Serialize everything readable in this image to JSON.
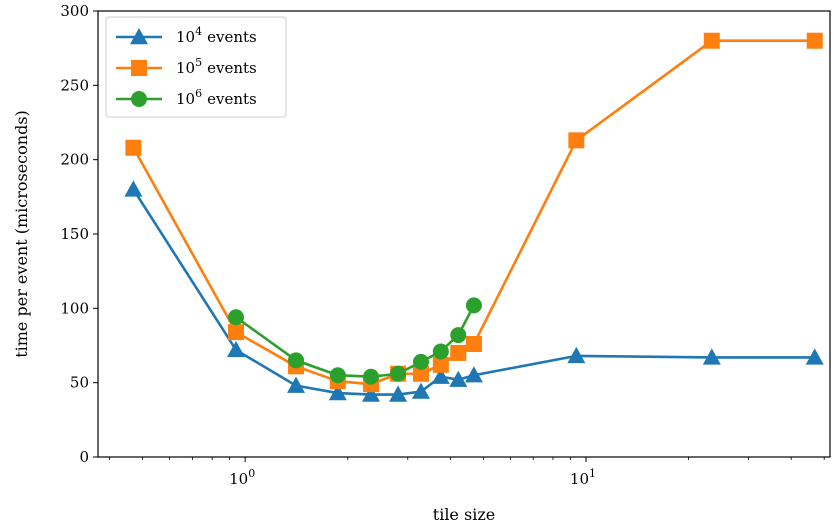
{
  "chart_data": {
    "type": "line",
    "title": "",
    "xlabel": "tile size",
    "ylabel": "time per event (microseconds)",
    "xscale": "log",
    "xlim": [
      0.37,
      52
    ],
    "ylim": [
      0,
      300
    ],
    "grid": false,
    "legend_position": "top-left",
    "x_ticks": [
      {
        "value": 1,
        "base": "10",
        "exp": "0"
      },
      {
        "value": 10,
        "base": "10",
        "exp": "1"
      }
    ],
    "y_ticks": [
      0,
      50,
      100,
      150,
      200,
      250,
      300
    ],
    "series": [
      {
        "name": {
          "base": "10",
          "exp": "4",
          "suffix": "events"
        },
        "color": "#1f77b4",
        "marker": "triangle",
        "x": [
          0.47,
          0.94,
          1.41,
          1.87,
          2.34,
          2.81,
          3.28,
          3.75,
          4.22,
          4.69,
          9.37,
          23.4,
          46.9
        ],
        "y": [
          180,
          72,
          48,
          43,
          42,
          42,
          44,
          54,
          52,
          55,
          68,
          67,
          67
        ]
      },
      {
        "name": {
          "base": "10",
          "exp": "5",
          "suffix": "events"
        },
        "color": "#ff7f0e",
        "marker": "square",
        "x": [
          0.47,
          0.94,
          1.41,
          1.87,
          2.34,
          2.81,
          3.28,
          3.75,
          4.22,
          4.69,
          9.37,
          23.4,
          46.9
        ],
        "y": [
          208,
          84,
          61,
          51,
          49,
          56,
          56,
          62,
          70,
          76,
          213,
          280,
          280
        ]
      },
      {
        "name": {
          "base": "10",
          "exp": "6",
          "suffix": "events"
        },
        "color": "#2ca02c",
        "marker": "circle",
        "x": [
          0.94,
          1.41,
          1.87,
          2.34,
          2.81,
          3.28,
          3.75,
          4.22,
          4.69
        ],
        "y": [
          94,
          65,
          55,
          54,
          56,
          64,
          71,
          82,
          102
        ]
      }
    ]
  }
}
